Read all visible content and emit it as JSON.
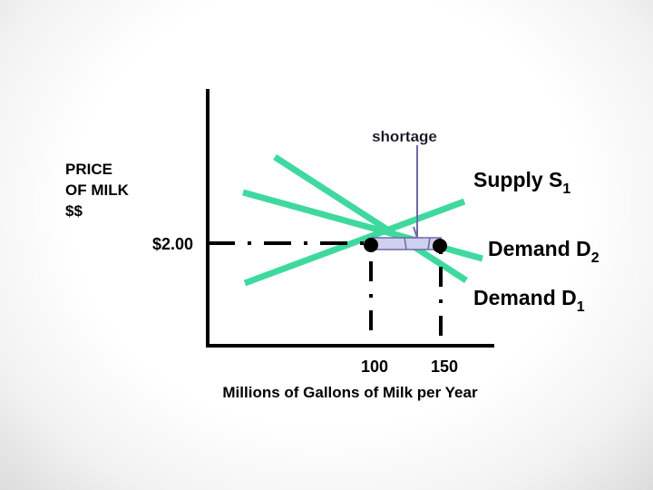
{
  "labels": {
    "y_axis_line1": "PRICE",
    "y_axis_line2": "OF MILK",
    "y_axis_line3": "$$",
    "x_axis": "Millions of Gallons of Milk per Year",
    "price_level": "$2.00",
    "quantity_left": "100",
    "quantity_right": "150",
    "shortage": "shortage",
    "supply_name": "Supply S",
    "supply_sub": "1",
    "demand2_name": "Demand D",
    "demand2_sub": "2",
    "demand1_name": "Demand D",
    "demand1_sub": "1"
  },
  "colors": {
    "curve": "#3fd9a0",
    "axis": "#000000",
    "shortage_fill": "#cfcfee",
    "shortage_outline": "#6a6aa6",
    "shortage_text": "#d6d6e6"
  }
}
